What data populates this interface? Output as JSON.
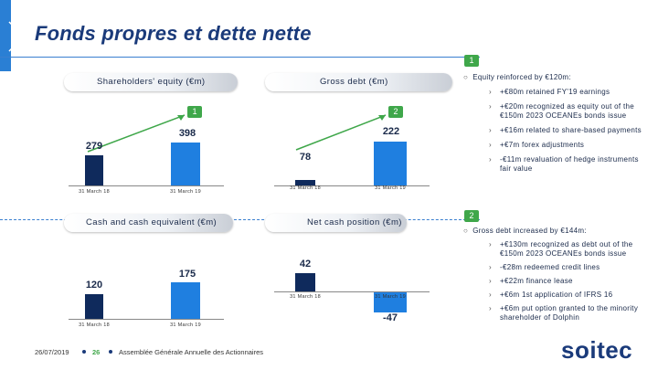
{
  "title": "Fonds propres et dette nette",
  "colors": {
    "accent": "#2a7fd4",
    "dark_bar": "#0f2a5c",
    "blue_bar": "#1f7fe0",
    "badge": "#3fa74a",
    "arrow": "#3fa74a"
  },
  "top": {
    "badge_top": "1",
    "equity_label": "Shareholders' equity (€m)",
    "debt_label": "Gross debt (€m)",
    "equity_chart": {
      "badge": "1",
      "categories": [
        "31 March 18",
        "31 March 19"
      ],
      "values": [
        "279",
        "398"
      ]
    },
    "debt_chart": {
      "badge": "2",
      "categories": [
        "31 March 18",
        "31 March 19"
      ],
      "values": [
        "78",
        "222"
      ]
    }
  },
  "bottom": {
    "badge_mid": "2",
    "cash_label": "Cash and cash equivalent (€m)",
    "netcash_label": "Net cash position (€m)",
    "cash_chart": {
      "categories": [
        "31 March 18",
        "31 March 19"
      ],
      "values": [
        "120",
        "175"
      ]
    },
    "netcash_chart": {
      "categories": [
        "31 March 18",
        "31 March 19"
      ],
      "values": [
        "42",
        "-47"
      ]
    }
  },
  "chart_data": [
    {
      "type": "bar",
      "title": "Shareholders' equity (€m)",
      "categories": [
        "31 March 18",
        "31 March 19"
      ],
      "values": [
        279,
        398
      ]
    },
    {
      "type": "bar",
      "title": "Gross debt (€m)",
      "categories": [
        "31 March 18",
        "31 March 19"
      ],
      "values": [
        78,
        222
      ]
    },
    {
      "type": "bar",
      "title": "Cash and cash equivalent (€m)",
      "categories": [
        "31 March 18",
        "31 March 19"
      ],
      "values": [
        120,
        175
      ]
    },
    {
      "type": "bar",
      "title": "Net cash position (€m)",
      "categories": [
        "31 March 18",
        "31 March 19"
      ],
      "values": [
        42,
        -47
      ]
    }
  ],
  "right": {
    "equity_head": "Equity reinforced by €120m:",
    "equity_items": [
      "+€80m retained FY'19 earnings",
      "+€20m recognized as equity out of the €150m 2023 OCEANEs bonds issue",
      "+€16m related to share-based payments",
      "+€7m forex adjustments",
      "-€11m revaluation of hedge instruments fair value"
    ],
    "debt_head": "Gross debt increased by €144m:",
    "debt_items": [
      "+€130m recognized as debt out of the €150m 2023 OCEANEs bonds issue",
      "-€28m redeemed credit lines",
      "+€22m finance lease",
      "+€6m 1st application of IFRS 16",
      "+€6m put option granted to the minority shareholder of Dolphin"
    ]
  },
  "footer": {
    "date": "26/07/2019",
    "page": "26",
    "event": "Assemblée Générale Annuelle des Actionnaires"
  },
  "logo": "soitec"
}
